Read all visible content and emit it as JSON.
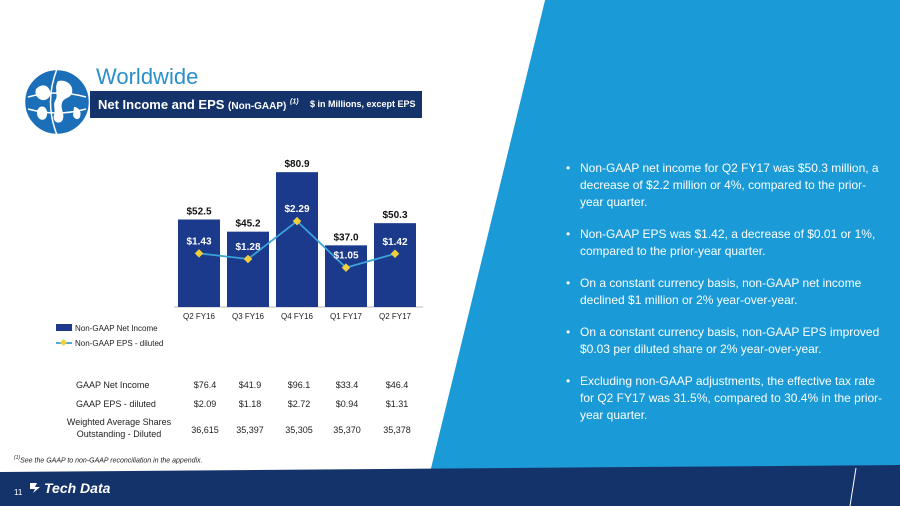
{
  "header": {
    "title": "Worldwide",
    "subtitle_main": "Net Income and EPS",
    "subtitle_qualifier": "(Non-GAAP)",
    "subtitle_superscript": "(1)",
    "subtitle_units": "$ in Millions, except EPS"
  },
  "chart_data": {
    "type": "bar",
    "categories": [
      "Q2 FY16",
      "Q3 FY16",
      "Q4 FY16",
      "Q1 FY17",
      "Q2 FY17"
    ],
    "series": [
      {
        "name": "Non-GAAP Net Income",
        "type": "bar",
        "values": [
          52.5,
          45.2,
          80.9,
          37.0,
          50.3
        ],
        "labels": [
          "$52.5",
          "$45.2",
          "$80.9",
          "$37.0",
          "$50.3"
        ]
      },
      {
        "name": "Non-GAAP EPS - diluted",
        "type": "line",
        "values": [
          1.43,
          1.28,
          2.29,
          1.05,
          1.42
        ],
        "labels": [
          "$1.43",
          "$1.28",
          "$2.29",
          "$1.05",
          "$1.42"
        ]
      }
    ],
    "colors": {
      "bar": "#1b3a8c",
      "line": "#3aa3d9",
      "marker": "#f2cf3a"
    },
    "ylim": [
      0,
      90
    ],
    "eps_ylim": [
      0,
      4
    ],
    "legend_position": "bottom-left"
  },
  "stats_table": {
    "rows": [
      {
        "label": "GAAP Net Income",
        "values": [
          "$76.4",
          "$41.9",
          "$96.1",
          "$33.4",
          "$46.4"
        ]
      },
      {
        "label": "GAAP EPS - diluted",
        "values": [
          "$2.09",
          "$1.18",
          "$2.72",
          "$0.94",
          "$1.31"
        ]
      },
      {
        "label_line1": "Weighted Average Shares",
        "label_line2": "Outstanding - Diluted",
        "values": [
          "36,615",
          "35,397",
          "35,305",
          "35,370",
          "35,378"
        ]
      }
    ]
  },
  "footnote": {
    "marker": "(1)",
    "text": "See the GAAP to non-GAAP reconciliation in the appendix."
  },
  "bullets": [
    "Non-GAAP net income for Q2 FY17 was $50.3 million, a decrease of $2.2 million or 4%, compared to the prior-year quarter.",
    "Non-GAAP EPS was $1.42, a decrease of $0.01 or 1%, compared to the prior-year quarter.",
    "On a constant currency basis, non-GAAP net income declined $1 million or 2% year-over-year.",
    "On a constant currency basis, non-GAAP EPS improved $0.03 per diluted share or 2% year-over-year.",
    "Excluding non-GAAP adjustments, the effective tax rate for Q2 FY17 was 31.5%, compared to 30.4% in the prior-year quarter."
  ],
  "bullet_glyph": "•",
  "footer": {
    "page_number": "11",
    "logo_text": "Tech Data"
  },
  "colors": {
    "accent_blue": "#1a9ad6",
    "navy": "#15336b",
    "title_blue": "#2a8fcb"
  }
}
